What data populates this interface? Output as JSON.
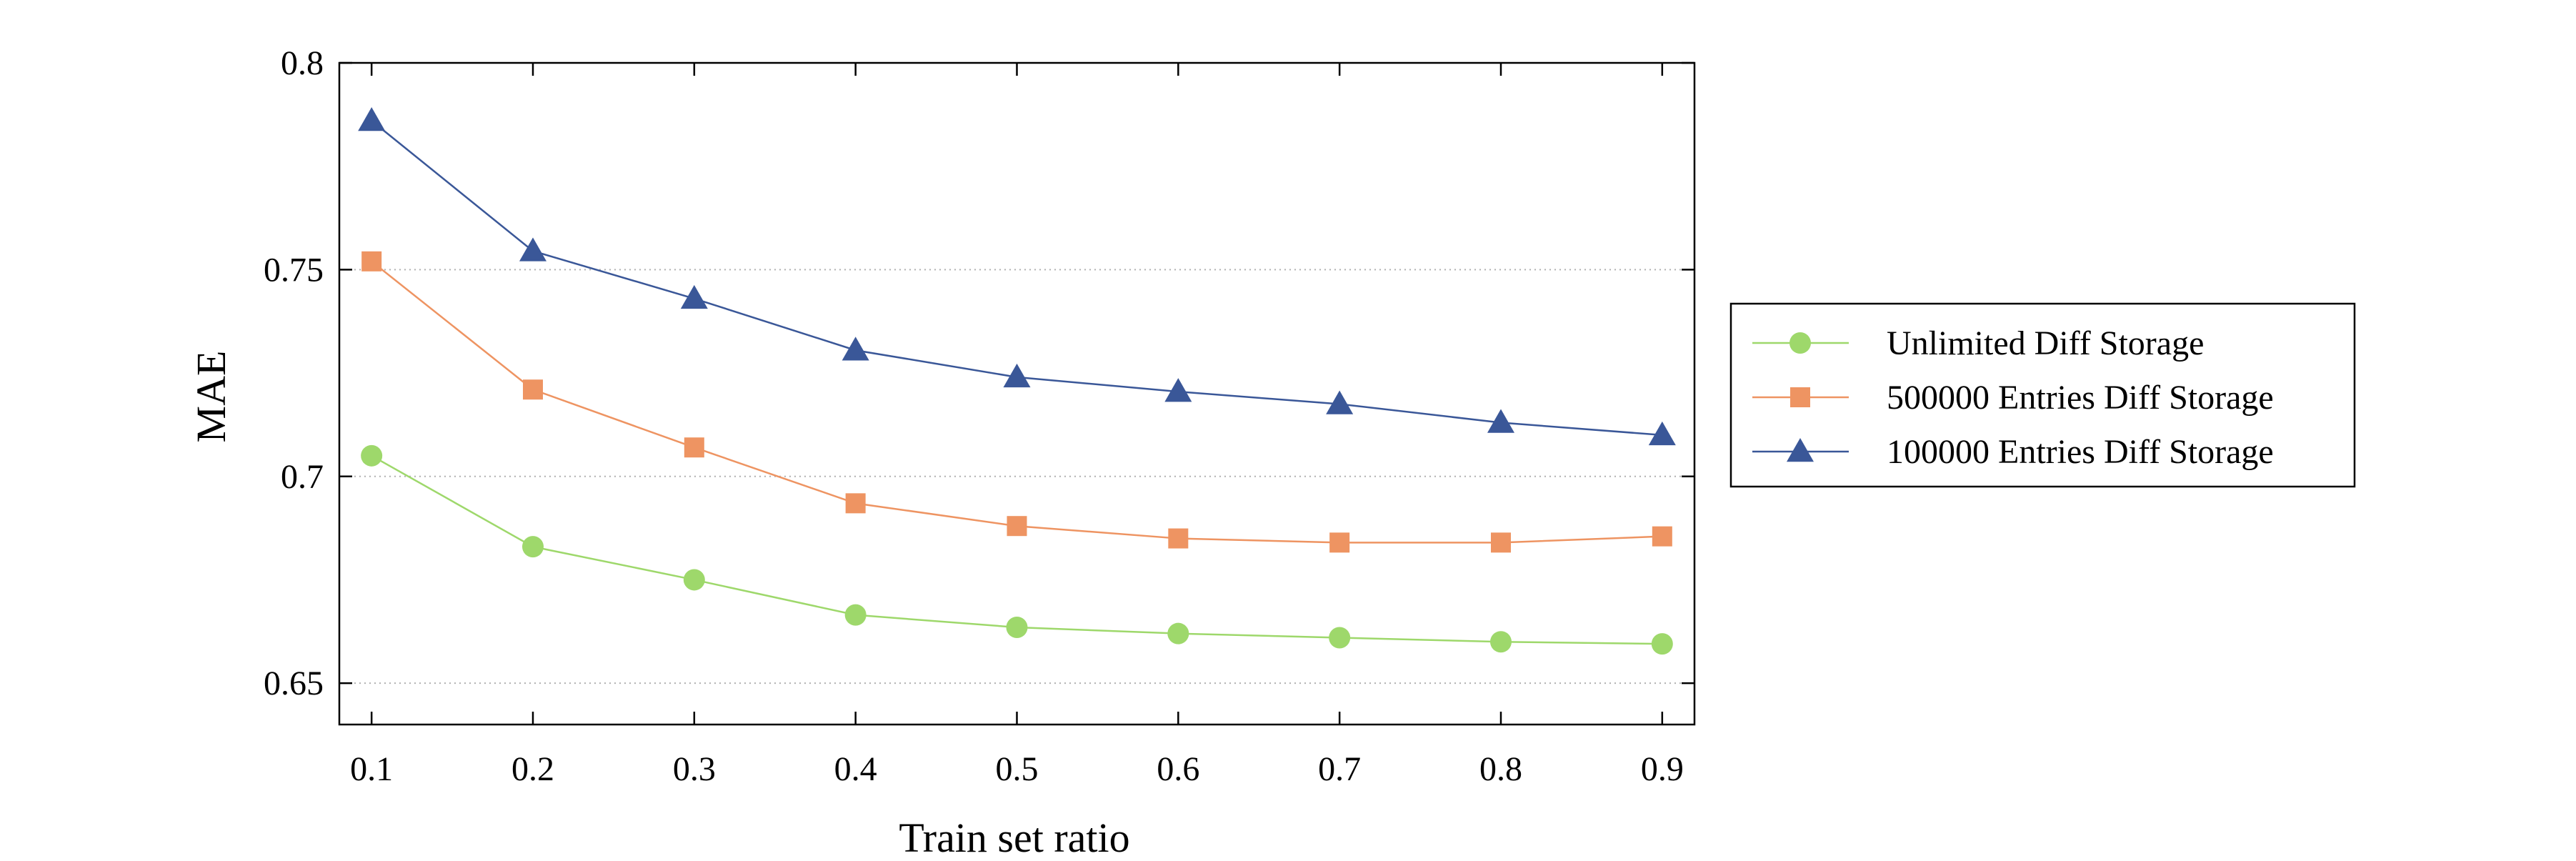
{
  "chart_data": {
    "type": "line",
    "title": "",
    "xlabel": "Train set ratio",
    "ylabel": "MAE",
    "x": [
      0.1,
      0.2,
      0.3,
      0.4,
      0.5,
      0.6,
      0.7,
      0.8,
      0.9
    ],
    "x_tick_labels": [
      "0.1",
      "0.2",
      "0.3",
      "0.4",
      "0.5",
      "0.6",
      "0.7",
      "0.8",
      "0.9"
    ],
    "xlim": [
      0.08,
      0.92
    ],
    "ylim": [
      0.64,
      0.8
    ],
    "y_ticks": [
      0.65,
      0.7,
      0.75,
      0.8
    ],
    "y_tick_labels": [
      "0.65",
      "0.7",
      "0.75",
      "0.8"
    ],
    "grid": "horizontal-dotted",
    "legend_position": "right-outside",
    "series": [
      {
        "name": "Unlimited Diff Storage",
        "marker": "circle",
        "color": "#9ed86b",
        "values": [
          0.705,
          0.683,
          0.675,
          0.6665,
          0.6635,
          0.662,
          0.661,
          0.66,
          0.6595
        ]
      },
      {
        "name": "500000 Entries Diff Storage",
        "marker": "square",
        "color": "#ee9462",
        "values": [
          0.752,
          0.721,
          0.707,
          0.6935,
          0.688,
          0.685,
          0.684,
          0.684,
          0.6855
        ]
      },
      {
        "name": "100000 Entries Diff Storage",
        "marker": "triangle",
        "color": "#3a5798",
        "values": [
          0.786,
          0.7545,
          0.743,
          0.7305,
          0.724,
          0.7205,
          0.7175,
          0.713,
          0.71
        ]
      }
    ]
  }
}
